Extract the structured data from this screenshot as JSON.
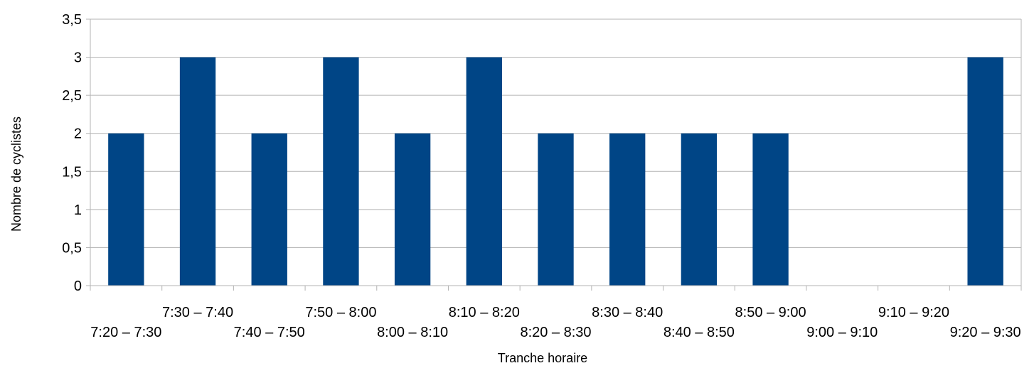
{
  "chart_data": {
    "type": "bar",
    "categories": [
      "7:20 – 7:30",
      "7:30 – 7:40",
      "7:40 – 7:50",
      "7:50 – 8:00",
      "8:00 – 8:10",
      "8:10 – 8:20",
      "8:20 – 8:30",
      "8:30 – 8:40",
      "8:40 – 8:50",
      "8:50 – 9:00",
      "9:00 – 9:10",
      "9:10 – 9:20",
      "9:20 – 9:30"
    ],
    "values": [
      2,
      3,
      2,
      3,
      2,
      3,
      2,
      2,
      2,
      2,
      0,
      0,
      3
    ],
    "title": "",
    "xlabel": "Tranche horaire",
    "ylabel": "Nombre de cyclistes",
    "ylim": [
      0,
      3.5
    ],
    "yticks": [
      0,
      0.5,
      1,
      1.5,
      2,
      2.5,
      3,
      3.5
    ],
    "ytick_labels": [
      "0",
      "0,5",
      "1",
      "1,5",
      "2",
      "2,5",
      "3",
      "3,5"
    ],
    "grid": true,
    "legend": "none",
    "colors": {
      "bar": "#004586",
      "grid": "#b3b3b3",
      "axis": "#b3b3b3"
    }
  }
}
